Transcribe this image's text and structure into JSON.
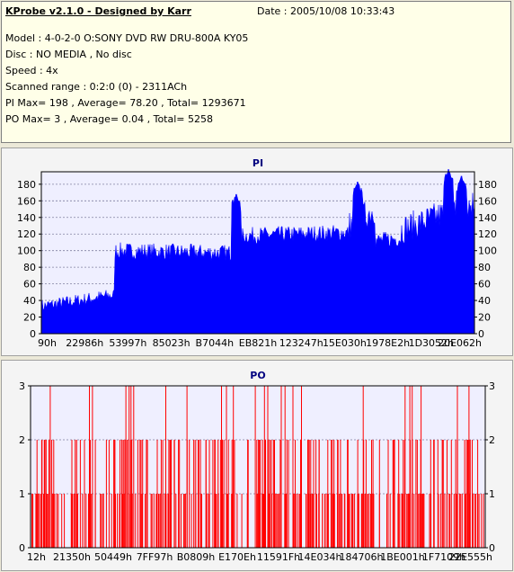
{
  "info": {
    "title": "KProbe v2.1.0 - Designed by Karr",
    "date": "Date : 2005/10/08 10:33:43",
    "model": "Model : 4-0-2-0 O:SONY    DVD RW DRU-800A  KY05",
    "disc": "Disc : NO MEDIA , No disc",
    "speed": "Speed : 4x",
    "scanned_range": "Scanned range : 0:2:0 (0) - 2311ACh",
    "pi_summary": "PI Max= 198 , Average= 78.20 , Total= 1293671",
    "po_summary": "PO Max= 3 , Average= 0.04 , Total= 5258"
  },
  "colors": {
    "pi": "#0000ff",
    "po": "#ff0000",
    "panel_bg": "#ffffe8",
    "plot_bg": "#efefff"
  },
  "chart_data": [
    {
      "type": "area",
      "title": "PI",
      "ylim": [
        0,
        195
      ],
      "yticks": [
        0,
        20,
        40,
        60,
        80,
        100,
        120,
        140,
        160,
        180
      ],
      "xtick_labels": [
        "90h",
        "22986h",
        "53997h",
        "85023h",
        "B7044h",
        "EB821h",
        "123247h",
        "15E030h",
        "1978E2h",
        "1D3052h",
        "20E062h"
      ],
      "grid": true,
      "segments": [
        {
          "x_from": 0,
          "x_to": 0.17,
          "y_from": 33,
          "y_to": 47,
          "noise": 8
        },
        {
          "x_from": 0.17,
          "x_to": 0.455,
          "y_from": 100,
          "y_to": 97,
          "noise": 10
        },
        {
          "x_from": 0.455,
          "x_to": 0.71,
          "y_from": 118,
          "y_to": 122,
          "noise": 10
        },
        {
          "x_from": 0.71,
          "x_to": 0.77,
          "y_from": 130,
          "y_to": 150,
          "noise": 18
        },
        {
          "x_from": 0.77,
          "x_to": 0.83,
          "y_from": 112,
          "y_to": 115,
          "noise": 10
        },
        {
          "x_from": 0.83,
          "x_to": 1.0,
          "y_from": 125,
          "y_to": 158,
          "noise": 18
        }
      ],
      "peaks": [
        {
          "x": 0.45,
          "y": 168
        },
        {
          "x": 0.73,
          "y": 183
        },
        {
          "x": 0.94,
          "y": 198
        },
        {
          "x": 0.97,
          "y": 190
        }
      ]
    },
    {
      "type": "bar",
      "title": "PO",
      "ylim": [
        0,
        3
      ],
      "yticks": [
        0,
        1,
        2,
        3
      ],
      "xtick_labels": [
        "12h",
        "21350h",
        "50449h",
        "7FF97h",
        "B0809h",
        "E170Eh",
        "11591Fh",
        "14E034h",
        "184706h",
        "1BE001h",
        "1F7109h",
        "22E555h"
      ],
      "grid": true,
      "approx_bar_count": 420,
      "level_shares": {
        "3": 0.04,
        "2": 0.4,
        "1": 0.56
      }
    }
  ]
}
